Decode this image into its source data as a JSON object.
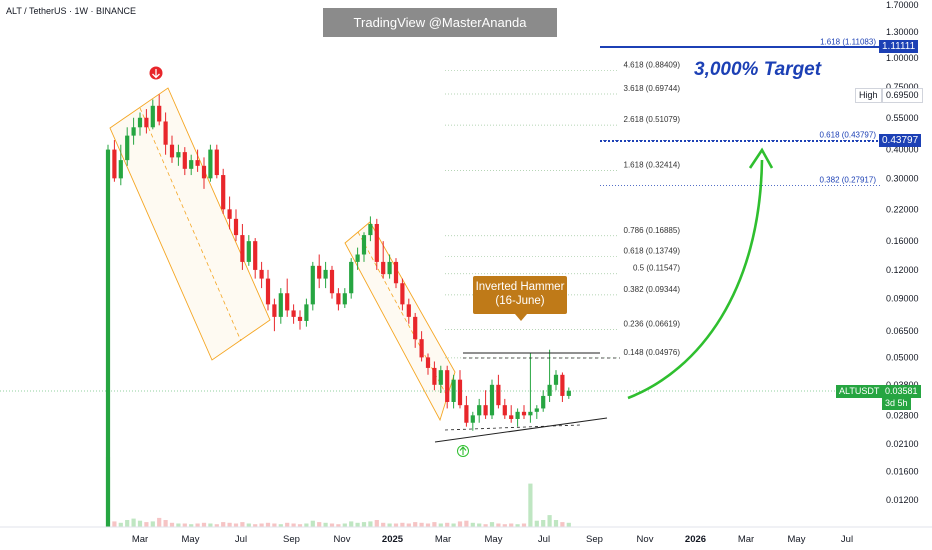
{
  "header": {
    "symbol": "ALT / TetherUS · 1W · BINANCE",
    "watermark": "TradingView @MasterAnanda"
  },
  "annotations": {
    "target": "3,000% Target",
    "callout": "Inverted Hammer\n(16-June)"
  },
  "price_tags": {
    "top": "1.11111",
    "high_label": "High",
    "high_value": "0.69500",
    "level": "0.43797",
    "symbol": "ALTUSDT",
    "last": "0.03581",
    "countdown": "3d 5h"
  },
  "colors": {
    "up": "#26a541",
    "down": "#e8262b",
    "channel": "#f5a623",
    "fib_right": "#1c40b5",
    "arrow": "#2fbf2f",
    "callout": "#bf7a18"
  },
  "chart_data": {
    "type": "candlestick",
    "title": "ALT / TetherUS · 1W · BINANCE",
    "x_ticks": [
      "Mar",
      "May",
      "Jul",
      "Sep",
      "Nov",
      "2025",
      "Mar",
      "May",
      "Jul",
      "Sep",
      "Nov",
      "2026",
      "Mar",
      "May",
      "Jul"
    ],
    "y_scale": "log",
    "y_ticks": [
      1.7,
      1.3,
      1.0,
      0.75,
      0.55,
      0.4,
      0.3,
      0.22,
      0.16,
      0.12,
      0.09,
      0.065,
      0.05,
      0.038,
      0.028,
      0.021,
      0.016,
      0.012
    ],
    "y_tick_labels": [
      "1.70000",
      "1.30000",
      "1.00000",
      "0.75000",
      "0.55000",
      "0.40000",
      "0.30000",
      "0.22000",
      "0.16000",
      "0.12000",
      "0.09000",
      "0.06500",
      "0.05000",
      "0.03800",
      "0.02800",
      "0.02100",
      "0.01600",
      "0.01200"
    ],
    "candles": [
      {
        "o": 0.02,
        "h": 0.42,
        "l": 0.02,
        "c": 0.4
      },
      {
        "o": 0.4,
        "h": 0.44,
        "l": 0.29,
        "c": 0.3
      },
      {
        "o": 0.3,
        "h": 0.42,
        "l": 0.28,
        "c": 0.36
      },
      {
        "o": 0.36,
        "h": 0.5,
        "l": 0.34,
        "c": 0.46
      },
      {
        "o": 0.46,
        "h": 0.55,
        "l": 0.42,
        "c": 0.5
      },
      {
        "o": 0.5,
        "h": 0.58,
        "l": 0.46,
        "c": 0.55
      },
      {
        "o": 0.55,
        "h": 0.6,
        "l": 0.47,
        "c": 0.5
      },
      {
        "o": 0.5,
        "h": 0.66,
        "l": 0.49,
        "c": 0.62
      },
      {
        "o": 0.62,
        "h": 0.695,
        "l": 0.51,
        "c": 0.53
      },
      {
        "o": 0.53,
        "h": 0.58,
        "l": 0.38,
        "c": 0.42
      },
      {
        "o": 0.42,
        "h": 0.46,
        "l": 0.35,
        "c": 0.37
      },
      {
        "o": 0.37,
        "h": 0.42,
        "l": 0.34,
        "c": 0.39
      },
      {
        "o": 0.39,
        "h": 0.41,
        "l": 0.31,
        "c": 0.33
      },
      {
        "o": 0.33,
        "h": 0.38,
        "l": 0.31,
        "c": 0.36
      },
      {
        "o": 0.36,
        "h": 0.4,
        "l": 0.32,
        "c": 0.34
      },
      {
        "o": 0.34,
        "h": 0.37,
        "l": 0.27,
        "c": 0.3
      },
      {
        "o": 0.3,
        "h": 0.42,
        "l": 0.29,
        "c": 0.4
      },
      {
        "o": 0.4,
        "h": 0.42,
        "l": 0.3,
        "c": 0.31
      },
      {
        "o": 0.31,
        "h": 0.33,
        "l": 0.21,
        "c": 0.22
      },
      {
        "o": 0.22,
        "h": 0.25,
        "l": 0.18,
        "c": 0.2
      },
      {
        "o": 0.2,
        "h": 0.22,
        "l": 0.16,
        "c": 0.17
      },
      {
        "o": 0.17,
        "h": 0.19,
        "l": 0.12,
        "c": 0.13
      },
      {
        "o": 0.13,
        "h": 0.17,
        "l": 0.125,
        "c": 0.16
      },
      {
        "o": 0.16,
        "h": 0.165,
        "l": 0.11,
        "c": 0.12
      },
      {
        "o": 0.12,
        "h": 0.13,
        "l": 0.1,
        "c": 0.11
      },
      {
        "o": 0.11,
        "h": 0.12,
        "l": 0.08,
        "c": 0.085
      },
      {
        "o": 0.085,
        "h": 0.09,
        "l": 0.065,
        "c": 0.075
      },
      {
        "o": 0.075,
        "h": 0.1,
        "l": 0.07,
        "c": 0.095
      },
      {
        "o": 0.095,
        "h": 0.11,
        "l": 0.075,
        "c": 0.08
      },
      {
        "o": 0.08,
        "h": 0.085,
        "l": 0.07,
        "c": 0.075
      },
      {
        "o": 0.075,
        "h": 0.08,
        "l": 0.066,
        "c": 0.072
      },
      {
        "o": 0.072,
        "h": 0.09,
        "l": 0.068,
        "c": 0.085
      },
      {
        "o": 0.085,
        "h": 0.13,
        "l": 0.08,
        "c": 0.125
      },
      {
        "o": 0.125,
        "h": 0.14,
        "l": 0.1,
        "c": 0.11
      },
      {
        "o": 0.11,
        "h": 0.13,
        "l": 0.1,
        "c": 0.12
      },
      {
        "o": 0.12,
        "h": 0.125,
        "l": 0.09,
        "c": 0.095
      },
      {
        "o": 0.095,
        "h": 0.1,
        "l": 0.08,
        "c": 0.085
      },
      {
        "o": 0.085,
        "h": 0.1,
        "l": 0.082,
        "c": 0.095
      },
      {
        "o": 0.095,
        "h": 0.135,
        "l": 0.09,
        "c": 0.13
      },
      {
        "o": 0.13,
        "h": 0.15,
        "l": 0.12,
        "c": 0.14
      },
      {
        "o": 0.14,
        "h": 0.175,
        "l": 0.13,
        "c": 0.17
      },
      {
        "o": 0.17,
        "h": 0.205,
        "l": 0.16,
        "c": 0.19
      },
      {
        "o": 0.19,
        "h": 0.2,
        "l": 0.12,
        "c": 0.13
      },
      {
        "o": 0.13,
        "h": 0.16,
        "l": 0.11,
        "c": 0.115
      },
      {
        "o": 0.115,
        "h": 0.14,
        "l": 0.11,
        "c": 0.13
      },
      {
        "o": 0.13,
        "h": 0.135,
        "l": 0.1,
        "c": 0.105
      },
      {
        "o": 0.105,
        "h": 0.11,
        "l": 0.08,
        "c": 0.085
      },
      {
        "o": 0.085,
        "h": 0.09,
        "l": 0.07,
        "c": 0.075
      },
      {
        "o": 0.075,
        "h": 0.078,
        "l": 0.055,
        "c": 0.06
      },
      {
        "o": 0.06,
        "h": 0.065,
        "l": 0.048,
        "c": 0.05
      },
      {
        "o": 0.05,
        "h": 0.052,
        "l": 0.042,
        "c": 0.045
      },
      {
        "o": 0.045,
        "h": 0.048,
        "l": 0.036,
        "c": 0.038
      },
      {
        "o": 0.038,
        "h": 0.046,
        "l": 0.035,
        "c": 0.044
      },
      {
        "o": 0.044,
        "h": 0.046,
        "l": 0.03,
        "c": 0.032
      },
      {
        "o": 0.032,
        "h": 0.042,
        "l": 0.03,
        "c": 0.04
      },
      {
        "o": 0.04,
        "h": 0.044,
        "l": 0.03,
        "c": 0.031
      },
      {
        "o": 0.031,
        "h": 0.034,
        "l": 0.025,
        "c": 0.026
      },
      {
        "o": 0.026,
        "h": 0.029,
        "l": 0.024,
        "c": 0.028
      },
      {
        "o": 0.028,
        "h": 0.033,
        "l": 0.026,
        "c": 0.031
      },
      {
        "o": 0.031,
        "h": 0.036,
        "l": 0.027,
        "c": 0.028
      },
      {
        "o": 0.028,
        "h": 0.04,
        "l": 0.027,
        "c": 0.038
      },
      {
        "o": 0.038,
        "h": 0.042,
        "l": 0.03,
        "c": 0.031
      },
      {
        "o": 0.031,
        "h": 0.033,
        "l": 0.027,
        "c": 0.028
      },
      {
        "o": 0.028,
        "h": 0.031,
        "l": 0.026,
        "c": 0.027
      },
      {
        "o": 0.027,
        "h": 0.03,
        "l": 0.025,
        "c": 0.029
      },
      {
        "o": 0.029,
        "h": 0.031,
        "l": 0.027,
        "c": 0.028
      },
      {
        "o": 0.028,
        "h": 0.052,
        "l": 0.026,
        "c": 0.029
      },
      {
        "o": 0.029,
        "h": 0.031,
        "l": 0.027,
        "c": 0.03
      },
      {
        "o": 0.03,
        "h": 0.036,
        "l": 0.029,
        "c": 0.034
      },
      {
        "o": 0.034,
        "h": 0.054,
        "l": 0.032,
        "c": 0.038
      },
      {
        "o": 0.038,
        "h": 0.044,
        "l": 0.036,
        "c": 0.042
      },
      {
        "o": 0.042,
        "h": 0.043,
        "l": 0.032,
        "c": 0.034
      },
      {
        "o": 0.034,
        "h": 0.037,
        "l": 0.033,
        "c": 0.0358
      }
    ],
    "volumes": [
      1.0,
      0.08,
      0.06,
      0.1,
      0.12,
      0.09,
      0.07,
      0.08,
      0.13,
      0.1,
      0.06,
      0.05,
      0.05,
      0.04,
      0.05,
      0.06,
      0.05,
      0.04,
      0.07,
      0.06,
      0.05,
      0.07,
      0.05,
      0.04,
      0.05,
      0.06,
      0.05,
      0.04,
      0.06,
      0.05,
      0.04,
      0.05,
      0.09,
      0.07,
      0.06,
      0.05,
      0.04,
      0.05,
      0.08,
      0.06,
      0.07,
      0.08,
      0.1,
      0.06,
      0.05,
      0.05,
      0.06,
      0.05,
      0.07,
      0.06,
      0.05,
      0.07,
      0.05,
      0.06,
      0.05,
      0.08,
      0.09,
      0.06,
      0.05,
      0.04,
      0.07,
      0.05,
      0.04,
      0.05,
      0.04,
      0.05,
      0.62,
      0.09,
      0.1,
      0.17,
      0.1,
      0.07,
      0.06
    ],
    "fib_levels_left": [
      {
        "label": "4.618 (0.88409)",
        "value": 0.88409
      },
      {
        "label": "3.618 (0.69744)",
        "value": 0.69744
      },
      {
        "label": "2.618 (0.51079)",
        "value": 0.51079
      },
      {
        "label": "1.618 (0.32414)",
        "value": 0.32414
      },
      {
        "label": "0.786 (0.16885)",
        "value": 0.16885
      },
      {
        "label": "0.618 (0.13749)",
        "value": 0.13749
      },
      {
        "label": "0.5 (0.11547)",
        "value": 0.11547
      },
      {
        "label": "0.382 (0.09344)",
        "value": 0.09344
      },
      {
        "label": "0.236 (0.06619)",
        "value": 0.06619
      },
      {
        "label": "0.148 (0.04976)",
        "value": 0.04976
      }
    ],
    "fib_levels_right": [
      {
        "label": "1.618 (1.11083)",
        "value": 1.11083
      },
      {
        "label": "0.618 (0.43797)",
        "value": 0.43797
      },
      {
        "label": "0.382 (0.27917)",
        "value": 0.27917
      }
    ],
    "resistance_level": 0.0535,
    "current_price": 0.03581,
    "target_price": 1.11111,
    "high_price": 0.695
  }
}
